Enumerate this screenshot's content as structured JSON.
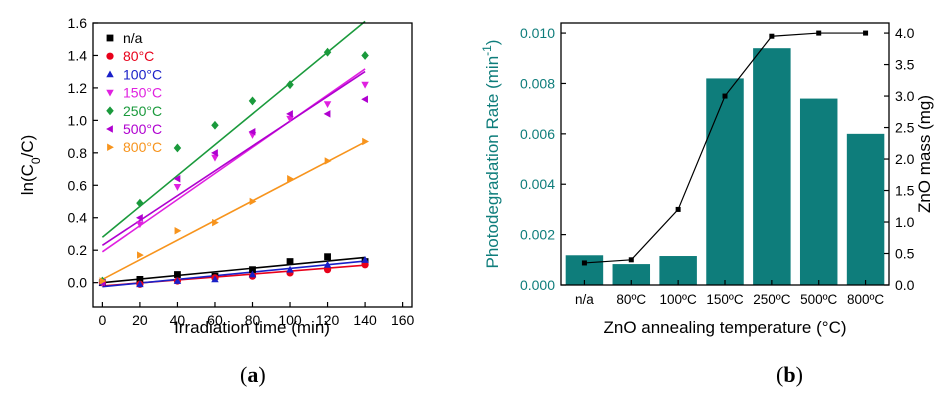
{
  "captions": {
    "a_open": "(",
    "a_letter": "a",
    "a_close": ")",
    "b_open": "(",
    "b_letter": "b",
    "b_close": ")"
  },
  "colors": {
    "teal": "#0e7d7b",
    "orange": "#f7941d",
    "green_series": "#1a9a3c",
    "purple_series": "#b000d0",
    "magenta_series": "#e020e0",
    "blue_series": "#1a20c8",
    "red_series": "#e8001a",
    "black_series": "#000000"
  },
  "chart_data": [
    {
      "id": "a",
      "type": "scatter",
      "xlabel": "Irradiation time (min)",
      "ylabel_parts": [
        "ln(C",
        "0",
        "/C)"
      ],
      "xlim": [
        -5,
        165
      ],
      "ylim": [
        -0.15,
        1.6
      ],
      "xticks": [
        0,
        20,
        40,
        60,
        80,
        100,
        120,
        140,
        160
      ],
      "yticks": [
        0.0,
        0.2,
        0.4,
        0.6,
        0.8,
        1.0,
        1.2,
        1.4,
        1.6
      ],
      "ytick_labels": [
        "0.0",
        "0.2",
        "0.4",
        "0.6",
        "0.8",
        "1.0",
        "1.2",
        "1.4",
        "1.6"
      ],
      "x": [
        0,
        20,
        40,
        60,
        80,
        100,
        120,
        140
      ],
      "legend_position": "top-left",
      "series": [
        {
          "name": "n/a",
          "marker": "square",
          "color": "#000000",
          "values": [
            0.0,
            0.02,
            0.05,
            0.04,
            0.08,
            0.13,
            0.16,
            0.13
          ],
          "fit": [
            0.0,
            0.00111
          ]
        },
        {
          "name": "80°C",
          "marker": "circle",
          "color": "#e8001a",
          "values": [
            0.0,
            -0.01,
            0.01,
            0.03,
            0.04,
            0.06,
            0.08,
            0.11
          ],
          "fit": [
            -0.02,
            0.00091
          ]
        },
        {
          "name": "100°C",
          "marker": "triangle-up",
          "color": "#1a20c8",
          "values": [
            0.0,
            -0.01,
            0.01,
            0.02,
            0.05,
            0.08,
            0.11,
            0.14
          ],
          "fit": [
            -0.025,
            0.00113
          ]
        },
        {
          "name": "150°C",
          "marker": "triangle-down",
          "color": "#e020e0",
          "values": [
            0.0,
            0.36,
            0.59,
            0.77,
            0.91,
            1.01,
            1.1,
            1.22
          ],
          "fit": [
            0.19,
            0.00805
          ]
        },
        {
          "name": "250°C",
          "marker": "diamond",
          "color": "#1a9a3c",
          "values": [
            0.01,
            0.49,
            0.83,
            0.97,
            1.12,
            1.22,
            1.42,
            1.4
          ],
          "fit": [
            0.28,
            0.0095
          ]
        },
        {
          "name": "500°C",
          "marker": "triangle-left",
          "color": "#b000d0",
          "values": [
            0.0,
            0.4,
            0.64,
            0.8,
            0.93,
            1.04,
            1.04,
            1.13
          ],
          "fit": [
            0.23,
            0.00765
          ]
        },
        {
          "name": "800°C",
          "marker": "triangle-right",
          "color": "#f7941d",
          "values": [
            0.01,
            0.17,
            0.32,
            0.37,
            0.5,
            0.64,
            0.75,
            0.87
          ],
          "fit": [
            0.02,
            0.00605
          ]
        }
      ]
    },
    {
      "id": "b",
      "type": "bar",
      "xlabel": "ZnO annealing temperature (°C)",
      "ylabel": "Photodegradation Rate (min",
      "ylabel_sup": "-1",
      "ylabel_close": ")",
      "y2label": "ZnO mass (mg)",
      "categories": [
        "n/a",
        "80ºC",
        "100ºC",
        "150ºC",
        "250ºC",
        "500ºC",
        "800ºC"
      ],
      "ylim": [
        0,
        0.0104
      ],
      "yticks": [
        0,
        0.002,
        0.004,
        0.006,
        0.008,
        0.01
      ],
      "ytick_labels": [
        "0.000",
        "0.002",
        "0.004",
        "0.006",
        "0.008",
        "0.010"
      ],
      "y2lim": [
        0,
        4.16
      ],
      "y2ticks": [
        0,
        0.5,
        1,
        1.5,
        2,
        2.5,
        3,
        3.5,
        4
      ],
      "y2tick_labels": [
        "0.0",
        "0.5",
        "1.0",
        "1.5",
        "2.0",
        "2.5",
        "3.0",
        "3.5",
        "4.0"
      ],
      "series": [
        {
          "axis": "left",
          "type": "bar",
          "color": "#0e7d7b",
          "values": [
            0.00118,
            0.00083,
            0.00115,
            0.0082,
            0.0094,
            0.0074,
            0.006
          ]
        },
        {
          "axis": "right",
          "type": "line",
          "color": "#000000",
          "values": [
            0.35,
            0.4,
            1.2,
            3.0,
            3.95,
            4.0,
            4.0
          ]
        }
      ]
    }
  ]
}
